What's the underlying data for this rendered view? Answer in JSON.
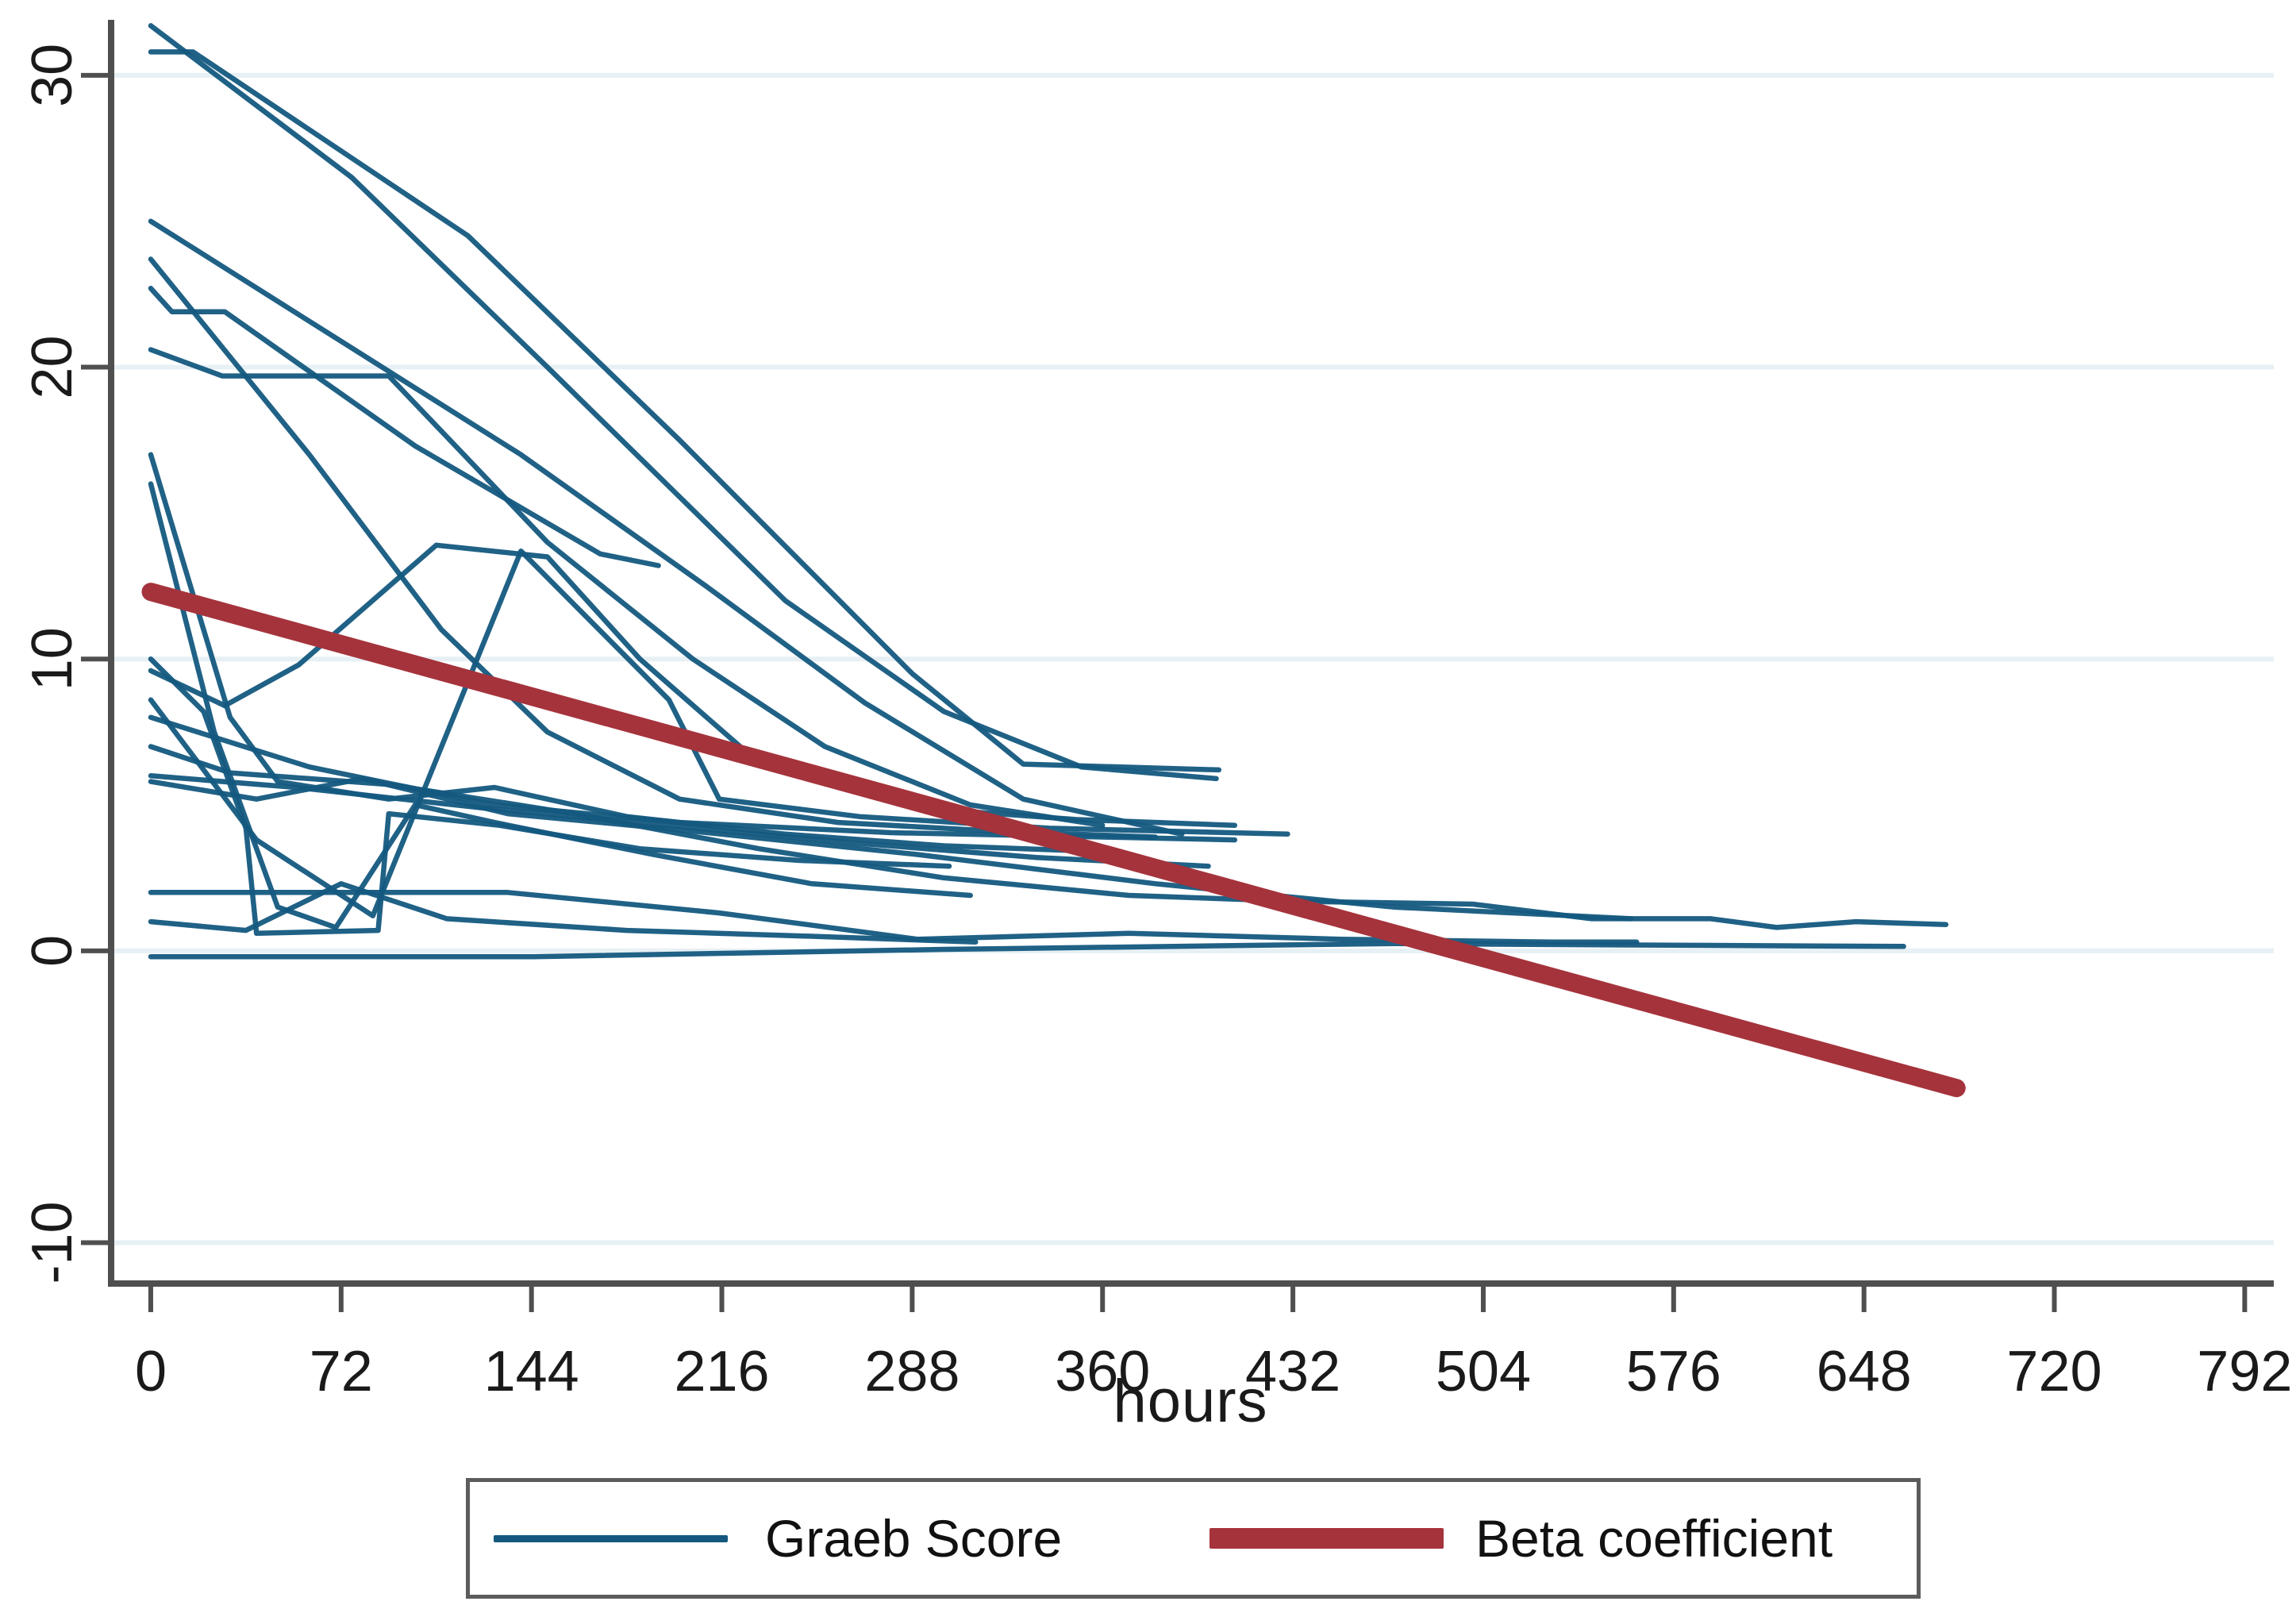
{
  "chart_data": {
    "type": "line",
    "title": "",
    "xlabel": "hours",
    "ylabel": "",
    "x_ticks": [
      0,
      72,
      144,
      216,
      288,
      360,
      432,
      504,
      576,
      648,
      720,
      792
    ],
    "y_ticks": [
      30,
      20,
      10,
      0,
      -10
    ],
    "xlim": [
      -15,
      803
    ],
    "ylim": [
      -11.4,
      31.9
    ],
    "grid": "horizontal",
    "grid_color": "#e7f0f4",
    "axis_color": "#4f4f4f",
    "tick_label_color": "#1a1a1a",
    "legend_position": "bottom",
    "series": [
      {
        "name": "Graeb Score",
        "color": "#14587f",
        "stroke_width": 6.5,
        "opacity": 0.95,
        "lines": [
          [
            [
              0,
              31.7
            ],
            [
              76,
              26.5
            ],
            [
              150,
              20
            ],
            [
              240,
              12
            ],
            [
              300,
              8.2
            ],
            [
              352,
              6.3
            ],
            [
              403,
              5.9
            ]
          ],
          [
            [
              0,
              30.8
            ],
            [
              16,
              30.8
            ],
            [
              120,
              24.5
            ],
            [
              200,
              17.5
            ],
            [
              288,
              9.5
            ],
            [
              330,
              6.4
            ],
            [
              404,
              6.2
            ]
          ],
          [
            [
              0,
              25
            ],
            [
              70,
              21
            ],
            [
              140,
              17
            ],
            [
              210,
              12.5
            ],
            [
              270,
              8.5
            ],
            [
              330,
              5.2
            ],
            [
              390,
              4
            ]
          ],
          [
            [
              0,
              23.7
            ],
            [
              60,
              17
            ],
            [
              110,
              11
            ],
            [
              150,
              7.5
            ],
            [
              200,
              5.2
            ],
            [
              260,
              4.4
            ],
            [
              320,
              4.1
            ],
            [
              380,
              3.9
            ]
          ],
          [
            [
              0,
              22.7
            ],
            [
              8,
              21.9
            ],
            [
              28,
              21.9
            ],
            [
              100,
              17.3
            ],
            [
              170,
              13.6
            ],
            [
              192,
              13.2
            ]
          ],
          [
            [
              0,
              20.6
            ],
            [
              27,
              19.7
            ],
            [
              90,
              19.7
            ],
            [
              150,
              14
            ],
            [
              205,
              10
            ],
            [
              255,
              7
            ],
            [
              310,
              5
            ],
            [
              360,
              4.3
            ]
          ],
          [
            [
              0,
              17
            ],
            [
              30,
              8
            ],
            [
              48,
              5.8
            ],
            [
              90,
              5.2
            ],
            [
              130,
              5.6
            ],
            [
              180,
              4.6
            ],
            [
              240,
              4
            ],
            [
              300,
              3.6
            ],
            [
              360,
              3.4
            ]
          ],
          [
            [
              0,
              16
            ],
            [
              24,
              7.5
            ],
            [
              48,
              1.5
            ],
            [
              70,
              0.8
            ],
            [
              100,
              5
            ],
            [
              130,
              4.4
            ],
            [
              190,
              3.3
            ],
            [
              250,
              2.3
            ],
            [
              310,
              1.9
            ]
          ],
          [
            [
              0,
              9.6
            ],
            [
              28,
              8.4
            ],
            [
              56,
              9.8
            ],
            [
              108,
              13.9
            ],
            [
              150,
              13.5
            ],
            [
              185,
              10
            ],
            [
              228,
              6.6
            ],
            [
              290,
              4.9
            ],
            [
              350,
              4.5
            ],
            [
              410,
              4.3
            ]
          ],
          [
            [
              0,
              8.6
            ],
            [
              40,
              3.8
            ],
            [
              84,
              1.2
            ],
            [
              140,
              13.7
            ],
            [
              196,
              8.6
            ],
            [
              215,
              5.2
            ],
            [
              268,
              4.6
            ],
            [
              340,
              4.2
            ],
            [
              430,
              4
            ]
          ],
          [
            [
              0,
              8
            ],
            [
              60,
              6.3
            ],
            [
              130,
              5
            ],
            [
              200,
              4.4
            ],
            [
              280,
              4.05
            ],
            [
              360,
              3.9
            ],
            [
              410,
              3.8
            ]
          ],
          [
            [
              0,
              7
            ],
            [
              30,
              6.1
            ],
            [
              90,
              5.7
            ],
            [
              160,
              4.7
            ],
            [
              230,
              3.5
            ],
            [
              300,
              2.5
            ],
            [
              370,
              1.9
            ],
            [
              432,
              1.7
            ],
            [
              500,
              1.6
            ],
            [
              545,
              1.1
            ],
            [
              590,
              1.1
            ],
            [
              615,
              0.8
            ],
            [
              645,
              1
            ],
            [
              679,
              0.9
            ]
          ],
          [
            [
              0,
              6
            ],
            [
              55,
              5.6
            ],
            [
              125,
              4.9
            ],
            [
              195,
              4.3
            ],
            [
              265,
              3.7
            ],
            [
              335,
              3.2
            ],
            [
              400,
              2.9
            ]
          ],
          [
            [
              0,
              5.8
            ],
            [
              40,
              5.2
            ],
            [
              80,
              5.9
            ],
            [
              135,
              4.7
            ],
            [
              205,
              4.1
            ],
            [
              290,
              3.3
            ],
            [
              380,
              2.3
            ],
            [
              470,
              1.5
            ],
            [
              560,
              1.1
            ]
          ],
          [
            [
              0,
              2
            ],
            [
              65,
              2
            ],
            [
              135,
              2
            ],
            [
              215,
              1.3
            ],
            [
              290,
              0.4
            ],
            [
              370,
              0.6
            ],
            [
              450,
              0.4
            ],
            [
              530,
              0.3
            ],
            [
              562,
              0.3
            ]
          ],
          [
            [
              0,
              1
            ],
            [
              36,
              0.7
            ],
            [
              72,
              2.3
            ],
            [
              112,
              1.1
            ],
            [
              180,
              0.7
            ],
            [
              250,
              0.5
            ],
            [
              312,
              0.3
            ]
          ],
          [
            [
              0,
              -0.2
            ],
            [
              145,
              -0.2
            ],
            [
              300,
              0.05
            ],
            [
              470,
              0.25
            ],
            [
              560,
              0.2
            ],
            [
              663,
              0.15
            ]
          ],
          [
            [
              0,
              10
            ],
            [
              20,
              8.2
            ],
            [
              36,
              4.2
            ],
            [
              40,
              0.6
            ],
            [
              86,
              0.7
            ],
            [
              90,
              4.7
            ],
            [
              132,
              4.3
            ],
            [
              185,
              3.5
            ],
            [
              245,
              3.1
            ],
            [
              302,
              2.9
            ]
          ]
        ]
      },
      {
        "name": "Beta coefficient",
        "color": "#a5333c",
        "stroke_width": 23,
        "opacity": 1,
        "lines": [
          [
            [
              0,
              12.3
            ],
            [
              683,
              -4.7
            ]
          ]
        ]
      }
    ]
  }
}
